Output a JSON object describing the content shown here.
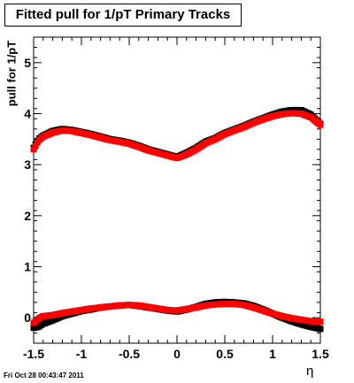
{
  "title": "Fitted pull for 1/pT  Primary Tracks",
  "timestamp": "Fri Oct 28 00:43:47 2011",
  "chart_data": {
    "type": "scatter",
    "title": "Fitted pull for 1/pT  Primary Tracks",
    "xlabel": "η",
    "ylabel": "pull for 1/pT",
    "xlim": [
      -1.5,
      1.5
    ],
    "ylim": [
      -0.5,
      5.5
    ],
    "x_ticks": [
      "-1.5",
      "-1",
      "-0.5",
      "0",
      "0.5",
      "1",
      "1.5"
    ],
    "y_ticks": [
      "0",
      "1",
      "2",
      "3",
      "4",
      "5"
    ],
    "colors": {
      "black": "#000000",
      "red": "#ff0000"
    },
    "series": [
      {
        "color": "black",
        "group": "upper",
        "x": [
          -1.5,
          -1.45,
          -1.4,
          -1.3,
          -1.2,
          -1.1,
          -1.0,
          -0.9,
          -0.8,
          -0.7,
          -0.6,
          -0.5,
          -0.4,
          -0.3,
          -0.2,
          -0.1,
          0.0,
          0.1,
          0.2,
          0.3,
          0.4,
          0.5,
          0.6,
          0.7,
          0.8,
          0.9,
          1.0,
          1.1,
          1.2,
          1.3,
          1.4,
          1.5
        ],
        "y": [
          3.33,
          3.5,
          3.57,
          3.66,
          3.7,
          3.68,
          3.64,
          3.6,
          3.55,
          3.5,
          3.47,
          3.43,
          3.37,
          3.3,
          3.25,
          3.2,
          3.15,
          3.23,
          3.33,
          3.45,
          3.52,
          3.62,
          3.69,
          3.76,
          3.84,
          3.91,
          3.98,
          4.04,
          4.07,
          4.07,
          3.98,
          3.8
        ]
      },
      {
        "color": "red",
        "group": "upper",
        "x": [
          -1.5,
          -1.45,
          -1.4,
          -1.3,
          -1.2,
          -1.1,
          -1.0,
          -0.9,
          -0.8,
          -0.7,
          -0.6,
          -0.5,
          -0.4,
          -0.3,
          -0.2,
          -0.1,
          0.0,
          0.1,
          0.2,
          0.3,
          0.4,
          0.5,
          0.6,
          0.7,
          0.8,
          0.9,
          1.0,
          1.1,
          1.2,
          1.3,
          1.4,
          1.5
        ],
        "y": [
          3.3,
          3.47,
          3.55,
          3.63,
          3.67,
          3.66,
          3.62,
          3.58,
          3.53,
          3.48,
          3.45,
          3.41,
          3.35,
          3.28,
          3.23,
          3.18,
          3.13,
          3.2,
          3.3,
          3.42,
          3.5,
          3.6,
          3.67,
          3.74,
          3.82,
          3.89,
          3.95,
          3.99,
          4.01,
          4.0,
          3.93,
          3.78
        ]
      },
      {
        "color": "black",
        "group": "lower",
        "x": [
          -1.5,
          -1.45,
          -1.4,
          -1.3,
          -1.2,
          -1.1,
          -1.0,
          -0.9,
          -0.8,
          -0.7,
          -0.6,
          -0.5,
          -0.4,
          -0.3,
          -0.2,
          -0.1,
          0.0,
          0.1,
          0.2,
          0.3,
          0.4,
          0.5,
          0.6,
          0.7,
          0.8,
          0.9,
          1.0,
          1.1,
          1.2,
          1.3,
          1.4,
          1.5
        ],
        "y": [
          -0.2,
          -0.18,
          -0.12,
          -0.05,
          0.03,
          0.08,
          0.13,
          0.16,
          0.2,
          0.22,
          0.24,
          0.25,
          0.23,
          0.2,
          0.17,
          0.14,
          0.12,
          0.16,
          0.21,
          0.27,
          0.3,
          0.31,
          0.3,
          0.28,
          0.23,
          0.16,
          0.08,
          0.0,
          -0.07,
          -0.13,
          -0.18,
          -0.22
        ]
      },
      {
        "color": "red",
        "group": "lower",
        "x": [
          -1.5,
          -1.45,
          -1.4,
          -1.3,
          -1.2,
          -1.1,
          -1.0,
          -0.9,
          -0.8,
          -0.7,
          -0.6,
          -0.5,
          -0.4,
          -0.3,
          -0.2,
          -0.1,
          0.0,
          0.1,
          0.2,
          0.3,
          0.4,
          0.5,
          0.6,
          0.7,
          0.8,
          0.9,
          1.0,
          1.1,
          1.2,
          1.3,
          1.4,
          1.5
        ],
        "y": [
          -0.1,
          -0.02,
          0.03,
          0.05,
          0.09,
          0.12,
          0.15,
          0.18,
          0.2,
          0.22,
          0.24,
          0.25,
          0.24,
          0.21,
          0.18,
          0.15,
          0.14,
          0.17,
          0.2,
          0.24,
          0.26,
          0.27,
          0.27,
          0.25,
          0.2,
          0.14,
          0.08,
          0.03,
          -0.01,
          -0.04,
          -0.07,
          -0.08
        ]
      }
    ]
  }
}
